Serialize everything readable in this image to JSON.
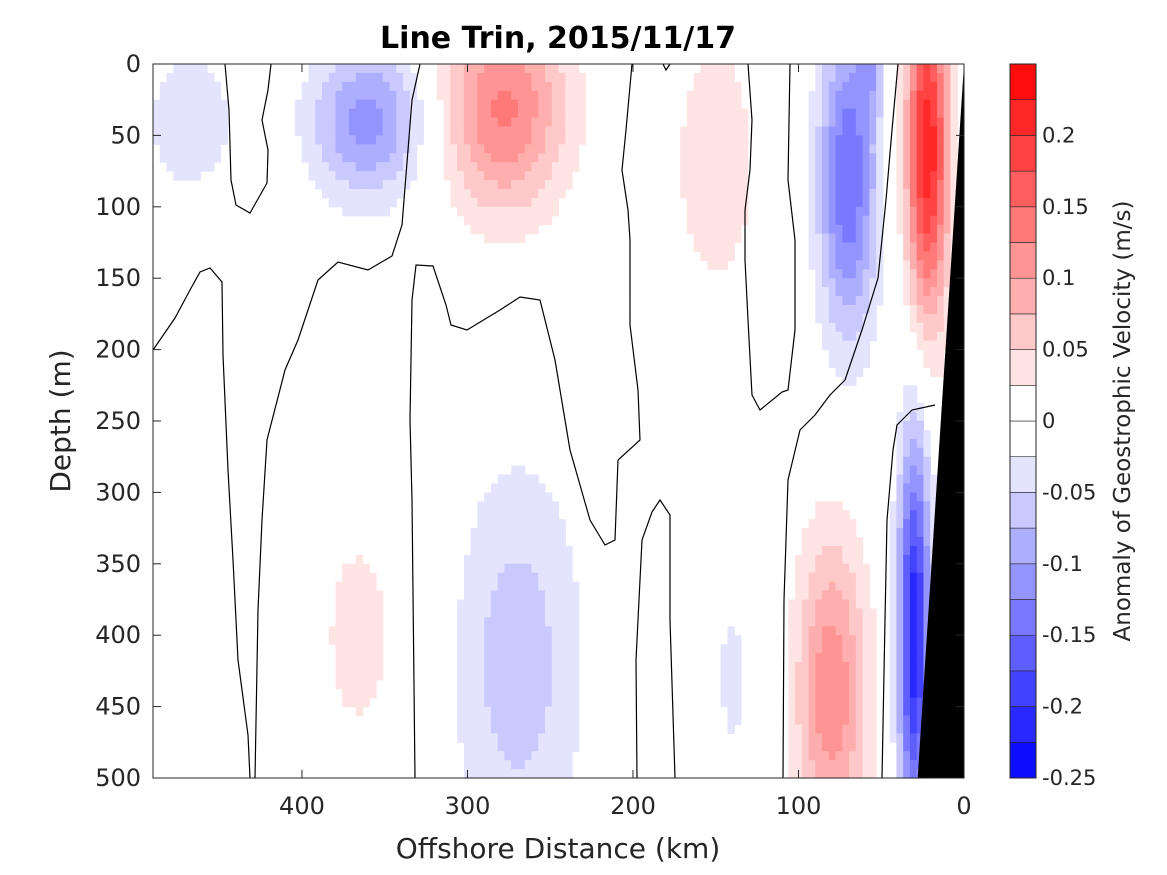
{
  "chart_data": {
    "type": "heatmap",
    "title": "Line Trin, 2015/11/17",
    "xlabel": "Offshore Distance (km)",
    "ylabel": "Depth (m)",
    "xlim": [
      490,
      0
    ],
    "ylim": [
      0,
      500
    ],
    "x_reversed": true,
    "y_reversed": true,
    "x_ticks": [
      400,
      300,
      200,
      100,
      0
    ],
    "y_ticks": [
      0,
      50,
      100,
      150,
      200,
      250,
      300,
      350,
      400,
      450,
      500
    ],
    "colorbar": {
      "label": "Anomaly of Geostrophic Velocity (m/s)",
      "range": [
        -0.25,
        0.25
      ],
      "step": 0.025,
      "ticks": [
        {
          "value": 0.2,
          "label": "0.2"
        },
        {
          "value": 0.15,
          "label": "0.15"
        },
        {
          "value": 0.1,
          "label": "0.1"
        },
        {
          "value": 0.05,
          "label": "0.05"
        },
        {
          "value": 0,
          "label": "0"
        },
        {
          "value": -0.05,
          "label": "-0.05"
        },
        {
          "value": -0.1,
          "label": "-0.1"
        },
        {
          "value": -0.15,
          "label": "-0.15"
        },
        {
          "value": -0.2,
          "label": "-0.2"
        },
        {
          "value": -0.25,
          "label": "-0.25"
        }
      ]
    },
    "colors": {
      "positive_max": "#ff0000",
      "negative_max": "#0000ff",
      "zero": "#ffffff",
      "topography": "#000000",
      "contour": "#000000"
    },
    "features": [
      {
        "x": 468,
        "depth": 40,
        "sx": 32,
        "sd": 60,
        "v": -0.04
      },
      {
        "x": 360,
        "depth": 40,
        "sx": 35,
        "sd": 55,
        "v": -0.11
      },
      {
        "x": 278,
        "depth": 30,
        "sx": 38,
        "sd": 75,
        "v": 0.13
      },
      {
        "x": 150,
        "depth": 70,
        "sx": 25,
        "sd": 90,
        "v": 0.05
      },
      {
        "x": 70,
        "depth": 80,
        "sx": 18,
        "sd": 110,
        "v": -0.15
      },
      {
        "x": 57,
        "depth": 5,
        "sx": 7,
        "sd": 30,
        "v": -0.06
      },
      {
        "x": 22,
        "depth": 60,
        "sx": 13,
        "sd": 120,
        "v": 0.22
      },
      {
        "x": 365,
        "depth": 400,
        "sx": 40,
        "sd": 130,
        "v": 0.03
      },
      {
        "x": 270,
        "depth": 420,
        "sx": 40,
        "sd": 140,
        "v": -0.065
      },
      {
        "x": 80,
        "depth": 440,
        "sx": 22,
        "sd": 110,
        "v": 0.12
      },
      {
        "x": 30,
        "depth": 400,
        "sx": 10,
        "sd": 140,
        "v": -0.22
      },
      {
        "x": 140,
        "depth": 430,
        "sx": 14,
        "sd": 90,
        "v": -0.03
      }
    ],
    "topography": {
      "x_at_surface": 0,
      "x_at_bottom": 28,
      "depth_top": 0,
      "depth_bottom": 500
    }
  }
}
